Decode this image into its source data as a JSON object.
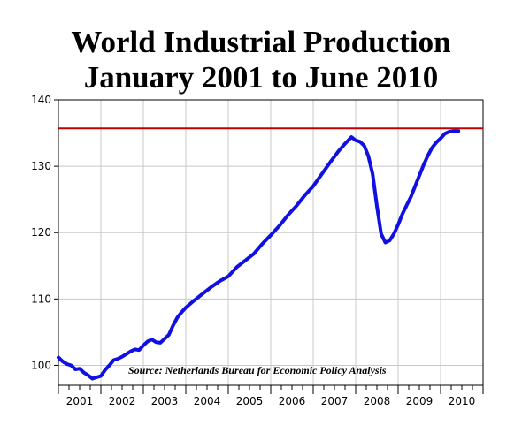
{
  "chart_data": {
    "type": "line",
    "title": "World Industrial Production",
    "subtitle": "January 2001 to June 2010",
    "source": "Source: Netherlands Bureau for Economic Policy Analysis",
    "xlabel": "",
    "ylabel": "",
    "ylim": [
      97,
      140
    ],
    "yticks": [
      100,
      110,
      120,
      130,
      140
    ],
    "xlim": [
      2001.0,
      2011.0
    ],
    "xtick_labels": [
      "2001",
      "2002",
      "2003",
      "2004",
      "2005",
      "2006",
      "2007",
      "2008",
      "2009",
      "2010"
    ],
    "grid": true,
    "line_color": "#1010e0",
    "reference_line": {
      "value": 135.7,
      "color": "#c00000"
    },
    "series": [
      {
        "x": [
          2001.0,
          2001.1,
          2001.2,
          2001.3,
          2001.4,
          2001.5,
          2001.6,
          2001.7,
          2001.8,
          2001.9,
          2002.0,
          2002.1,
          2002.2,
          2002.3,
          2002.4,
          2002.5,
          2002.6,
          2002.7,
          2002.8,
          2002.9,
          2003.0,
          2003.1,
          2003.2,
          2003.3,
          2003.4,
          2003.5,
          2003.6,
          2003.7,
          2003.8,
          2003.9,
          2004.0,
          2004.2,
          2004.4,
          2004.6,
          2004.8,
          2005.0,
          2005.2,
          2005.4,
          2005.6,
          2005.8,
          2006.0,
          2006.2,
          2006.4,
          2006.6,
          2006.8,
          2007.0,
          2007.2,
          2007.4,
          2007.6,
          2007.75,
          2007.9,
          2008.0,
          2008.1,
          2008.2,
          2008.3,
          2008.4,
          2008.5,
          2008.6,
          2008.7,
          2008.8,
          2008.9,
          2009.0,
          2009.1,
          2009.2,
          2009.3,
          2009.4,
          2009.5,
          2009.6,
          2009.7,
          2009.8,
          2009.9,
          2010.0,
          2010.1,
          2010.2,
          2010.3,
          2010.42
        ],
        "y": [
          101.2,
          100.6,
          100.2,
          100.0,
          99.4,
          99.5,
          98.9,
          98.5,
          98.0,
          98.2,
          98.4,
          99.3,
          100.0,
          100.8,
          101.0,
          101.3,
          101.7,
          102.1,
          102.4,
          102.3,
          103.0,
          103.6,
          103.9,
          103.5,
          103.4,
          104.0,
          104.6,
          106.0,
          107.2,
          108.0,
          108.7,
          109.8,
          110.8,
          111.8,
          112.7,
          113.4,
          114.8,
          115.8,
          116.8,
          118.3,
          119.6,
          121.0,
          122.6,
          124.0,
          125.6,
          127.0,
          128.8,
          130.6,
          132.3,
          133.4,
          134.4,
          133.9,
          133.7,
          133.1,
          131.5,
          128.8,
          124.0,
          119.8,
          118.5,
          118.8,
          119.8,
          121.2,
          122.8,
          124.1,
          125.4,
          127.0,
          128.6,
          130.2,
          131.6,
          132.8,
          133.6,
          134.2,
          134.9,
          135.2,
          135.3,
          135.3
        ]
      }
    ]
  }
}
